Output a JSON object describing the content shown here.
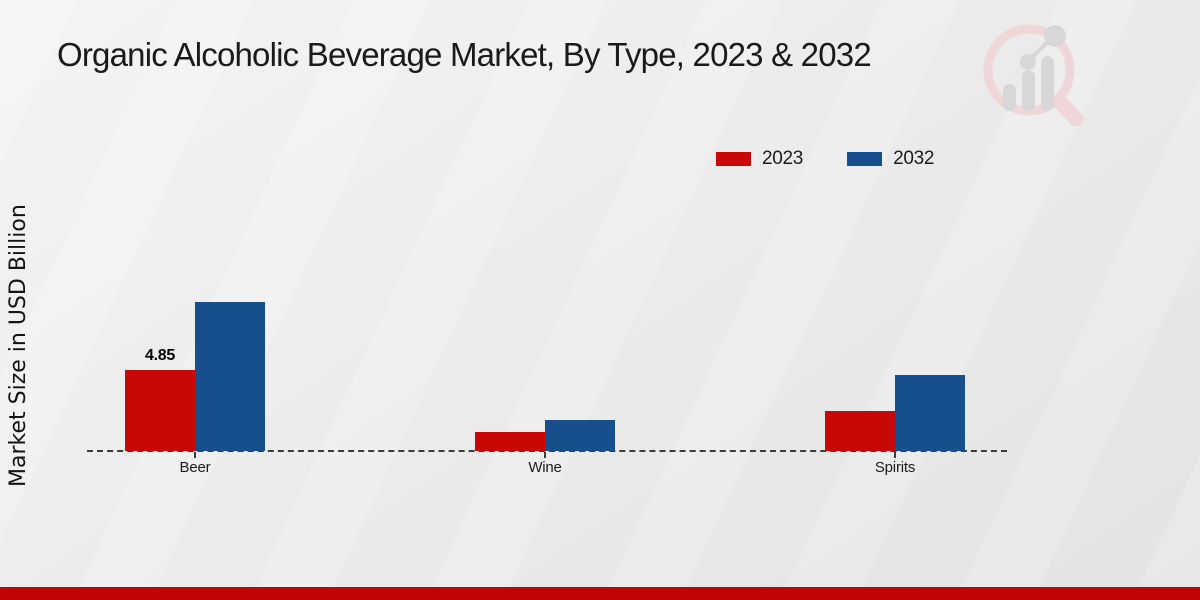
{
  "title": "Organic Alcoholic Beverage Market, By Type, 2023 & 2032",
  "y_axis_label": "Market Size in USD Billion",
  "legend": {
    "items": [
      {
        "label": "2023",
        "color": "#c80707"
      },
      {
        "label": "2032",
        "color": "#164f8c"
      }
    ]
  },
  "chart_data": {
    "type": "bar",
    "title": "Organic Alcoholic Beverage Market, By Type, 2023 & 2032",
    "ylabel": "Market Size in USD Billion",
    "xlabel": "",
    "categories": [
      "Beer",
      "Wine",
      "Spirits"
    ],
    "series": [
      {
        "name": "2023",
        "color": "#c80707",
        "values": [
          4.85,
          1.15,
          2.4
        ]
      },
      {
        "name": "2032",
        "color": "#164f8c",
        "values": [
          8.9,
          1.85,
          4.55
        ]
      }
    ],
    "data_labels": [
      {
        "series": "2023",
        "category": "Beer",
        "text": "4.85"
      }
    ],
    "ylim": [
      0,
      9.2
    ],
    "grid": false,
    "legend_position": "top-right",
    "baseline_style": "dashed",
    "units": "USD Billion"
  },
  "footer": {
    "band_color": "#c10505"
  },
  "logo": {
    "name": "market-research-watermark",
    "ring_color": "#f0d6d8",
    "bar_color": "#d6d6d8"
  }
}
